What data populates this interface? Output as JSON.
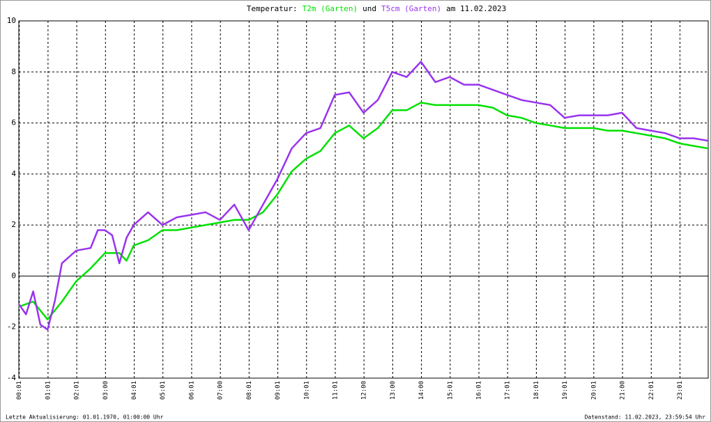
{
  "chart_data": {
    "type": "line",
    "title": "Temperatur:",
    "title_joiner": "und",
    "title_suffix": "am 11.02.2023",
    "series": [
      {
        "name": "T2m (Garten)",
        "color": "#00e000",
        "x": [
          0,
          0.5,
          1,
          1.5,
          2,
          2.5,
          3,
          3.5,
          3.75,
          4,
          4.5,
          5,
          5.5,
          6,
          6.5,
          7,
          7.5,
          8,
          8.5,
          9,
          9.5,
          10,
          10.5,
          11,
          11.5,
          12,
          12.5,
          13,
          13.5,
          14,
          14.5,
          15,
          15.5,
          16,
          16.5,
          17,
          17.5,
          18,
          18.5,
          19,
          19.5,
          20,
          20.5,
          21,
          21.5,
          22,
          22.5,
          23,
          23.5,
          24
        ],
        "values": [
          -1.2,
          -1.0,
          -1.7,
          -1.0,
          -0.2,
          0.3,
          0.9,
          0.9,
          0.6,
          1.2,
          1.4,
          1.8,
          1.8,
          1.9,
          2.0,
          2.1,
          2.2,
          2.2,
          2.5,
          3.2,
          4.1,
          4.6,
          4.9,
          5.6,
          5.9,
          5.4,
          5.8,
          6.5,
          6.5,
          6.8,
          6.7,
          6.7,
          6.7,
          6.7,
          6.6,
          6.3,
          6.2,
          6.0,
          5.9,
          5.8,
          5.8,
          5.8,
          5.7,
          5.7,
          5.6,
          5.5,
          5.4,
          5.2,
          5.1,
          5.0
        ]
      },
      {
        "name": "T5cm (Garten)",
        "color": "#9933ee",
        "x": [
          0,
          0.25,
          0.5,
          0.75,
          1,
          1.25,
          1.5,
          2,
          2.5,
          2.75,
          3,
          3.25,
          3.5,
          3.75,
          4,
          4.5,
          5,
          5.5,
          6,
          6.5,
          7,
          7.5,
          8,
          8.5,
          9,
          9.5,
          10,
          10.5,
          11,
          11.5,
          12,
          12.5,
          13,
          13.5,
          14,
          14.5,
          15,
          15.5,
          16,
          16.5,
          17,
          17.5,
          18,
          18.5,
          19,
          19.5,
          20,
          20.5,
          21,
          21.5,
          22,
          22.5,
          23,
          23.5,
          24
        ],
        "values": [
          -1.1,
          -1.5,
          -0.6,
          -1.9,
          -2.1,
          -1.0,
          0.5,
          1.0,
          1.1,
          1.8,
          1.8,
          1.6,
          0.5,
          1.5,
          2.0,
          2.5,
          2.0,
          2.3,
          2.4,
          2.5,
          2.2,
          2.8,
          1.8,
          2.8,
          3.8,
          5.0,
          5.6,
          5.8,
          7.1,
          7.2,
          6.4,
          6.9,
          8.0,
          7.8,
          8.4,
          7.6,
          7.8,
          7.5,
          7.5,
          7.3,
          7.1,
          6.9,
          6.8,
          6.7,
          6.2,
          6.3,
          6.3,
          6.3,
          6.4,
          5.8,
          5.7,
          5.6,
          5.4,
          5.4,
          5.3
        ]
      }
    ],
    "xlim": [
      0,
      24
    ],
    "xticks": [
      {
        "value": 0.0167,
        "label": "00:01"
      },
      {
        "value": 1.0167,
        "label": "01:01"
      },
      {
        "value": 2.0167,
        "label": "02:01"
      },
      {
        "value": 3.0167,
        "label": "03:00"
      },
      {
        "value": 4.0167,
        "label": "04:01"
      },
      {
        "value": 5.0167,
        "label": "05:01"
      },
      {
        "value": 6.0167,
        "label": "06:01"
      },
      {
        "value": 7.0167,
        "label": "07:00"
      },
      {
        "value": 8.0167,
        "label": "08:01"
      },
      {
        "value": 9.0167,
        "label": "09:01"
      },
      {
        "value": 10.0167,
        "label": "10:01"
      },
      {
        "value": 11.0167,
        "label": "11:01"
      },
      {
        "value": 12.0167,
        "label": "12:00"
      },
      {
        "value": 13.0167,
        "label": "13:00"
      },
      {
        "value": 14.0167,
        "label": "14:00"
      },
      {
        "value": 15.0167,
        "label": "15:01"
      },
      {
        "value": 16.0167,
        "label": "16:01"
      },
      {
        "value": 17.0167,
        "label": "17:01"
      },
      {
        "value": 18.0167,
        "label": "18:01"
      },
      {
        "value": 19.0167,
        "label": "19:01"
      },
      {
        "value": 20.0167,
        "label": "20:01"
      },
      {
        "value": 21.0167,
        "label": "21:00"
      },
      {
        "value": 22.0167,
        "label": "22:01"
      },
      {
        "value": 23.0167,
        "label": "23:01"
      }
    ],
    "ylim": [
      -4,
      10
    ],
    "yticks": [
      -4,
      -2,
      0,
      2,
      4,
      6,
      8,
      10
    ],
    "grid": true,
    "footer_left": "Letzte Aktualisierung: 01.01.1970, 01:00:00 Uhr",
    "footer_right": "Datenstand: 11.02.2023, 23:59:54 Uhr"
  }
}
